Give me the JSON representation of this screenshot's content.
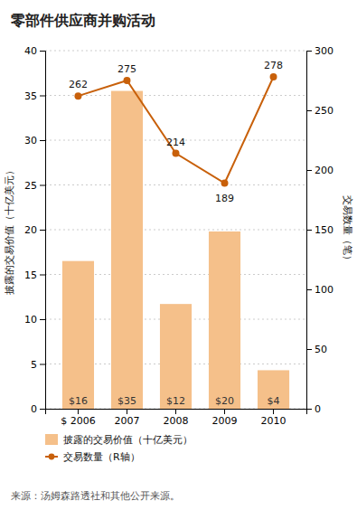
{
  "chart_data": {
    "type": "bar",
    "title": "零部件供应商并购活动",
    "categories": [
      "$ 2006",
      "2007",
      "2008",
      "2009",
      "2010"
    ],
    "series": [
      {
        "name": "披露的交易价值（十亿美元）",
        "type": "bar",
        "color": "#F5C08A",
        "values": [
          16.5,
          35.5,
          11.7,
          19.8,
          4.3
        ],
        "value_labels": [
          "$16",
          "$35",
          "$12",
          "$20",
          "$4"
        ],
        "data_labels": true
      },
      {
        "name": "交易数量（R轴）",
        "type": "line",
        "axis": "y2",
        "color": "#C8600A",
        "marker": "circle",
        "line_style": "solid",
        "values": [
          262,
          275,
          214,
          189,
          278
        ],
        "data_labels": true
      }
    ],
    "ylabel": "披露的交易价值（十亿美元）",
    "y2label": "交易数量（笔）",
    "ylim": [
      0,
      40
    ],
    "yticks": [
      0,
      5,
      10,
      15,
      20,
      25,
      30,
      35,
      40
    ],
    "y2lim": [
      0,
      300
    ],
    "y2ticks": [
      0,
      50,
      100,
      150,
      200,
      250,
      300
    ],
    "grid": true,
    "legend": "bottom",
    "source": "来源：汤姆森路透社和其他公开来源。"
  }
}
